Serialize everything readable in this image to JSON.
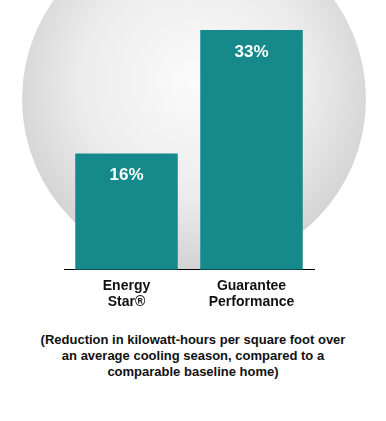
{
  "chart_data": {
    "type": "bar",
    "categories": [
      "Energy Star®",
      "Guarantee Performance"
    ],
    "values": [
      16,
      33
    ],
    "value_labels": [
      "16%",
      "33%"
    ],
    "data_labels": true,
    "color": "#16898a",
    "ylim": [
      0,
      33
    ],
    "grid": false,
    "tick_labels": "x",
    "annotations": [
      "(Reduction in kilowatt-hours per square foot over an average cooling season, compared to a comparable baseline home)"
    ]
  }
}
